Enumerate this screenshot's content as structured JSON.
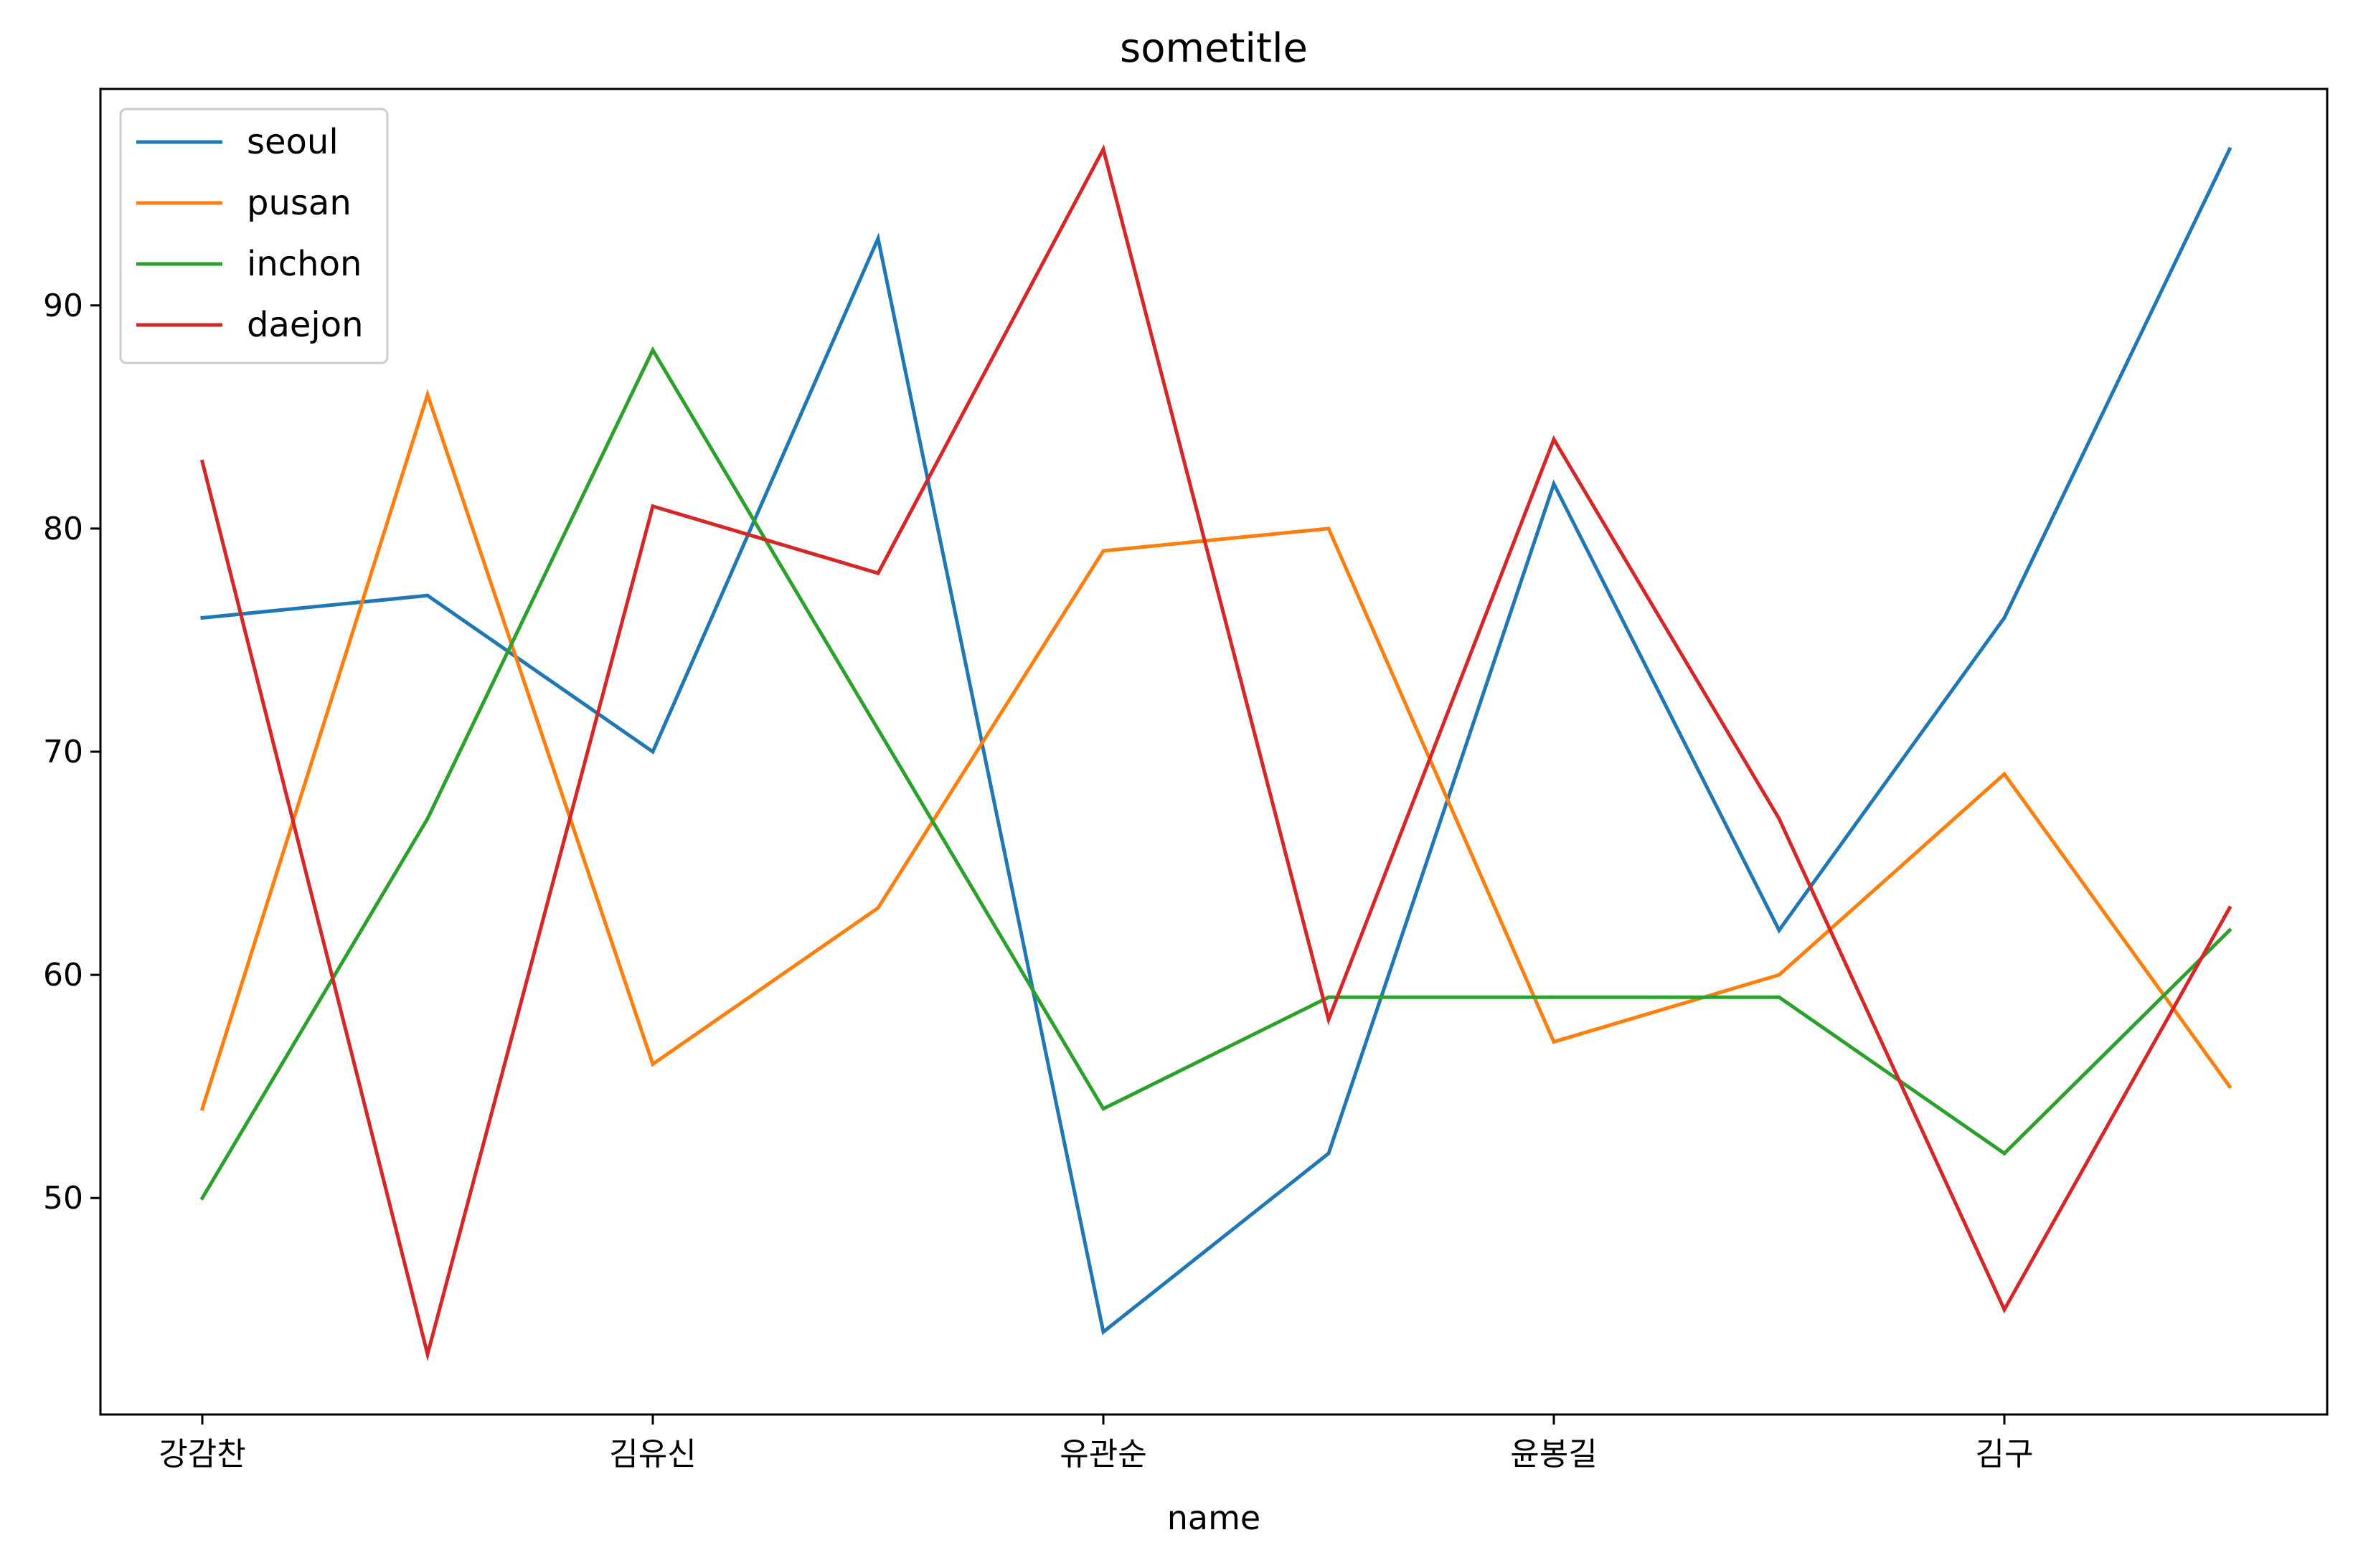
{
  "chart_data": {
    "type": "line",
    "title": "sometitle",
    "xlabel": "name",
    "ylabel": "",
    "categories": [
      "강감찬",
      "",
      "김유신",
      "",
      "유관순",
      "",
      "윤봉길",
      "",
      "김구",
      ""
    ],
    "x_tick_labels": [
      "강감찬",
      "김유신",
      "유관순",
      "윤봉길",
      "김구"
    ],
    "y_ticks": [
      50,
      60,
      70,
      80,
      90
    ],
    "ylim": [
      40.3,
      99.7
    ],
    "grid": false,
    "legend_position": "upper-left",
    "series": [
      {
        "name": "seoul",
        "color": "#1f77b4",
        "values": [
          76,
          77,
          70,
          93,
          44,
          52,
          82,
          62,
          76,
          97
        ]
      },
      {
        "name": "pusan",
        "color": "#ff7f0e",
        "values": [
          54,
          86,
          56,
          63,
          79,
          80,
          57,
          60,
          69,
          55
        ]
      },
      {
        "name": "inchon",
        "color": "#2ca02c",
        "values": [
          50,
          67,
          88,
          71,
          54,
          59,
          59,
          59,
          52,
          62
        ]
      },
      {
        "name": "daejon",
        "color": "#d62728",
        "values": [
          83,
          43,
          81,
          78,
          97,
          58,
          84,
          67,
          45,
          63
        ]
      }
    ]
  }
}
